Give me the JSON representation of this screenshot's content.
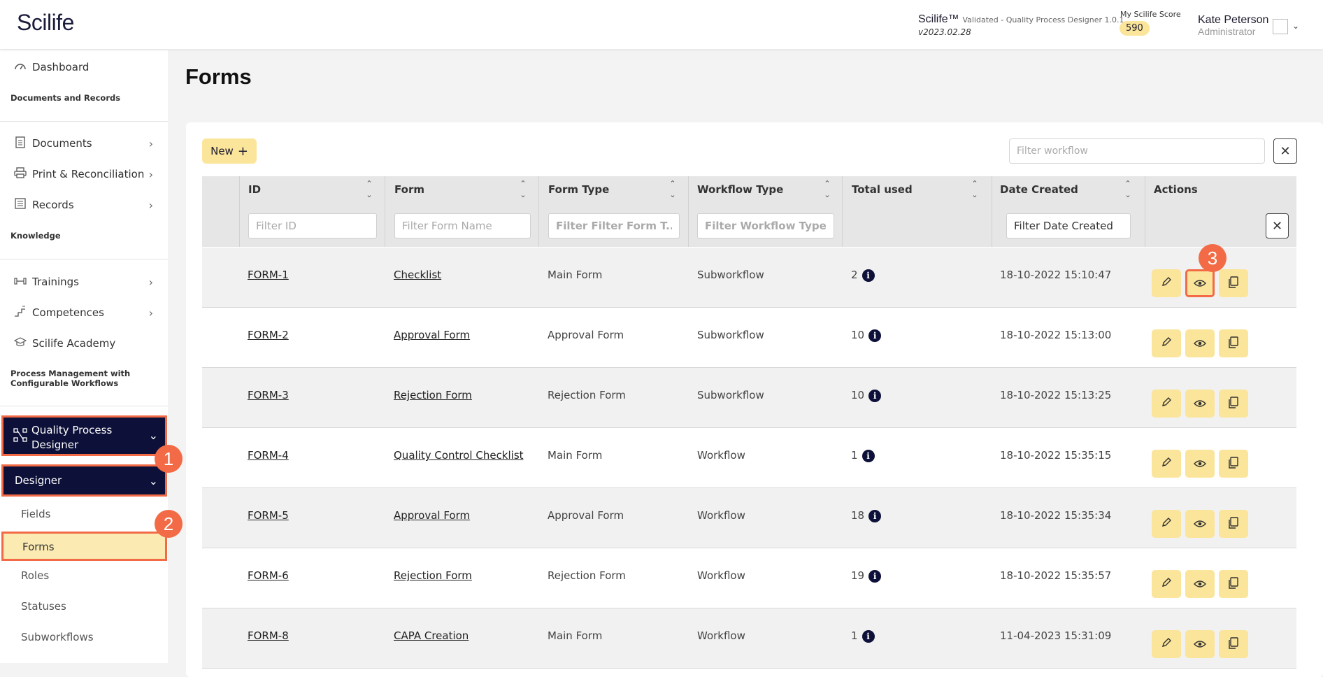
{
  "header": {
    "logo": "Scilife",
    "brand": "Scilife™",
    "validated": "Validated - Quality Process Designer 1.0.1",
    "version": "v2023.02.28",
    "score_label": "My Scilife Score",
    "score": "590",
    "user_name": "Kate Peterson",
    "user_role": "Administrator"
  },
  "sidebar": {
    "dashboard": "Dashboard",
    "section_docs": "Documents and Records",
    "documents": "Documents",
    "print": "Print & Reconciliation",
    "records": "Records",
    "section_knowledge": "Knowledge",
    "trainings": "Trainings",
    "competences": "Competences",
    "academy": "Scilife Academy",
    "section_process_1": "Process Management with",
    "section_process_2": "Configurable Workflows",
    "qpd_1": "Quality Process",
    "qpd_2": "Designer",
    "designer": "Designer",
    "fields": "Fields",
    "forms": "Forms",
    "roles": "Roles",
    "statuses": "Statuses",
    "subworkflows": "Subworkflows"
  },
  "markers": [
    "1",
    "2",
    "3"
  ],
  "page": {
    "title": "Forms",
    "new_label": "New",
    "filter_workflow_placeholder": "Filter workflow"
  },
  "table": {
    "columns": [
      "ID",
      "Form",
      "Form Type",
      "Workflow Type",
      "Total used",
      "Date Created",
      "Actions"
    ],
    "filters": {
      "id": "Filter ID",
      "form": "Filter Form Name",
      "form_type": "Filter Filter Form T...",
      "workflow_type": "Filter Workflow Type",
      "date": "Filter Date Created"
    },
    "rows": [
      {
        "id": "FORM-1",
        "form": "Checklist",
        "type": "Main Form",
        "workflow": "Subworkflow",
        "used": "2",
        "date": "18-10-2022 15:10:47"
      },
      {
        "id": "FORM-2",
        "form": "Approval Form",
        "type": "Approval Form",
        "workflow": "Subworkflow",
        "used": "10",
        "date": "18-10-2022 15:13:00"
      },
      {
        "id": "FORM-3",
        "form": "Rejection Form",
        "type": "Rejection Form",
        "workflow": "Subworkflow",
        "used": "10",
        "date": "18-10-2022 15:13:25"
      },
      {
        "id": "FORM-4",
        "form": "Quality Control Checklist",
        "type": "Main Form",
        "workflow": "Workflow",
        "used": "1",
        "date": "18-10-2022 15:35:15"
      },
      {
        "id": "FORM-5",
        "form": "Approval Form",
        "type": "Approval Form",
        "workflow": "Workflow",
        "used": "18",
        "date": "18-10-2022 15:35:34"
      },
      {
        "id": "FORM-6",
        "form": "Rejection Form",
        "type": "Rejection Form",
        "workflow": "Workflow",
        "used": "19",
        "date": "18-10-2022 15:35:57"
      },
      {
        "id": "FORM-8",
        "form": "CAPA Creation",
        "type": "Main Form",
        "workflow": "Workflow",
        "used": "1",
        "date": "11-04-2023 15:31:09"
      }
    ]
  },
  "icons": {
    "plus": "plus-icon",
    "close": "close-icon",
    "edit": "pencil-icon",
    "view": "eye-icon",
    "copy": "copy-icon",
    "info": "info-icon"
  },
  "colors": {
    "accent": "#fbe59a",
    "highlight": "#f26b46",
    "navy": "#0d1038"
  }
}
